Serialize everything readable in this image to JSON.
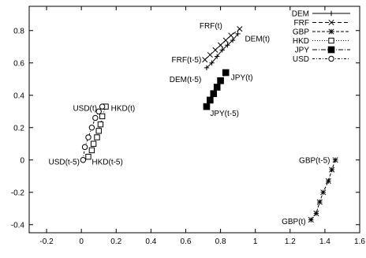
{
  "chart_data": {
    "type": "scatter",
    "title": "",
    "xlabel": "",
    "ylabel": "",
    "xlim": [
      -0.3,
      1.6
    ],
    "ylim": [
      -0.45,
      0.95
    ],
    "grid": false,
    "legend_position": "top-right",
    "x_ticks": [
      "-0.2",
      "0",
      "0.2",
      "0.4",
      "0.6",
      "0.8",
      "1",
      "1.2",
      "1.4",
      "1.6"
    ],
    "y_ticks": [
      "-0.4",
      "-0.2",
      "0",
      "0.2",
      "0.4",
      "0.6",
      "0.8"
    ],
    "series": [
      {
        "name": "DEM",
        "marker": "plus",
        "dash": "",
        "points": [
          [
            0.72,
            0.57
          ],
          [
            0.75,
            0.6
          ],
          [
            0.78,
            0.64
          ],
          [
            0.81,
            0.68
          ],
          [
            0.84,
            0.71
          ],
          [
            0.87,
            0.74
          ],
          [
            0.9,
            0.78
          ]
        ]
      },
      {
        "name": "FRF",
        "marker": "x",
        "dash": "5,3",
        "points": [
          [
            0.71,
            0.62
          ],
          [
            0.74,
            0.65
          ],
          [
            0.77,
            0.68
          ],
          [
            0.8,
            0.71
          ],
          [
            0.83,
            0.74
          ],
          [
            0.86,
            0.77
          ],
          [
            0.91,
            0.81
          ]
        ]
      },
      {
        "name": "GBP",
        "marker": "star",
        "dash": "4,2",
        "points": [
          [
            1.46,
            0.0
          ],
          [
            1.44,
            -0.06
          ],
          [
            1.42,
            -0.13
          ],
          [
            1.39,
            -0.2
          ],
          [
            1.37,
            -0.26
          ],
          [
            1.35,
            -0.33
          ],
          [
            1.32,
            -0.37
          ]
        ]
      },
      {
        "name": "HKD",
        "marker": "square-open",
        "dash": "1,2",
        "points": [
          [
            0.04,
            0.02
          ],
          [
            0.06,
            0.06
          ],
          [
            0.07,
            0.1
          ],
          [
            0.09,
            0.14
          ],
          [
            0.1,
            0.18
          ],
          [
            0.11,
            0.22
          ],
          [
            0.12,
            0.27
          ],
          [
            0.14,
            0.33
          ]
        ]
      },
      {
        "name": "JPY",
        "marker": "square-filled",
        "dash": "6,2,1,2",
        "points": [
          [
            0.72,
            0.33
          ],
          [
            0.74,
            0.37
          ],
          [
            0.76,
            0.41
          ],
          [
            0.78,
            0.45
          ],
          [
            0.8,
            0.49
          ],
          [
            0.83,
            0.54
          ]
        ]
      },
      {
        "name": "USD",
        "marker": "circle-open",
        "dash": "3,2,1,2",
        "points": [
          [
            0.01,
            0.0
          ],
          [
            0.02,
            0.08
          ],
          [
            0.04,
            0.14
          ],
          [
            0.06,
            0.2
          ],
          [
            0.08,
            0.26
          ],
          [
            0.1,
            0.3
          ],
          [
            0.12,
            0.33
          ]
        ]
      }
    ],
    "annotations": [
      {
        "text": "FRF(t)",
        "x": 0.81,
        "y": 0.83,
        "anchor": "end"
      },
      {
        "text": "DEM(t)",
        "x": 0.94,
        "y": 0.75,
        "anchor": "start"
      },
      {
        "text": "FRF(t-5)",
        "x": 0.69,
        "y": 0.62,
        "anchor": "end"
      },
      {
        "text": "DEM(t-5)",
        "x": 0.69,
        "y": 0.5,
        "anchor": "end"
      },
      {
        "text": "JPY(t)",
        "x": 0.86,
        "y": 0.51,
        "anchor": "start"
      },
      {
        "text": "JPY(t-5)",
        "x": 0.74,
        "y": 0.29,
        "anchor": "start"
      },
      {
        "text": "USD(t)",
        "x": 0.09,
        "y": 0.32,
        "anchor": "end"
      },
      {
        "text": "HKD(t)",
        "x": 0.17,
        "y": 0.32,
        "anchor": "start"
      },
      {
        "text": "USD(t-5)",
        "x": -0.01,
        "y": -0.01,
        "anchor": "end"
      },
      {
        "text": "HKD(t-5)",
        "x": 0.06,
        "y": -0.01,
        "anchor": "start"
      },
      {
        "text": "GBP(t-5)",
        "x": 1.43,
        "y": 0.0,
        "anchor": "end"
      },
      {
        "text": "GBP(t)",
        "x": 1.29,
        "y": -0.38,
        "anchor": "end"
      }
    ]
  }
}
